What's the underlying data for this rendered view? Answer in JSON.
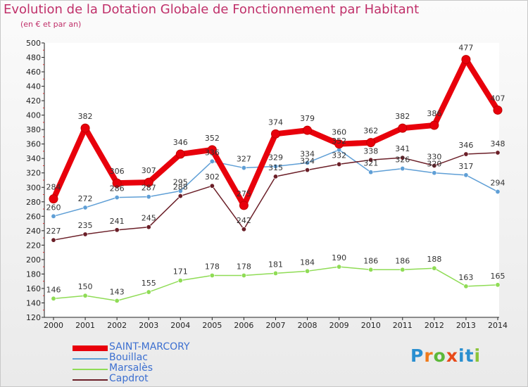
{
  "chart_data": {
    "type": "line",
    "title": "Evolution de la Dotation Globale de Fonctionnement par Habitant",
    "subtitle": "(en € et par an)",
    "xlabel": "",
    "ylabel": "",
    "ylim": [
      120,
      500
    ],
    "ytick_step": 20,
    "categories": [
      "2000",
      "2001",
      "2002",
      "2003",
      "2004",
      "2005",
      "2006",
      "2007",
      "2008",
      "2009",
      "2010",
      "2011",
      "2012",
      "2013",
      "2014"
    ],
    "series": [
      {
        "name": "SAINT-MARCORY",
        "color": "#e8000b",
        "values": [
          284,
          382,
          306,
          307,
          346,
          352,
          275,
          374,
          379,
          360,
          362,
          382,
          386,
          477,
          407
        ]
      },
      {
        "name": "Bouillac",
        "color": "#5f9fd6",
        "values": [
          260,
          272,
          286,
          287,
          295,
          336,
          327,
          329,
          334,
          352,
          321,
          326,
          320,
          317,
          294
        ]
      },
      {
        "name": "Marsalès",
        "color": "#8fdc55",
        "values": [
          146,
          150,
          143,
          155,
          171,
          178,
          178,
          181,
          184,
          190,
          186,
          186,
          188,
          163,
          165
        ]
      },
      {
        "name": "Capdrot",
        "color": "#6b1f28",
        "values": [
          227,
          235,
          241,
          245,
          288,
          302,
          242,
          315,
          324,
          332,
          338,
          341,
          330,
          346,
          348
        ]
      }
    ],
    "legend_position": "bottom-left",
    "grid": false
  },
  "legend_text_color": "#3c6fd0",
  "watermark": {
    "text": "Proxiti"
  }
}
